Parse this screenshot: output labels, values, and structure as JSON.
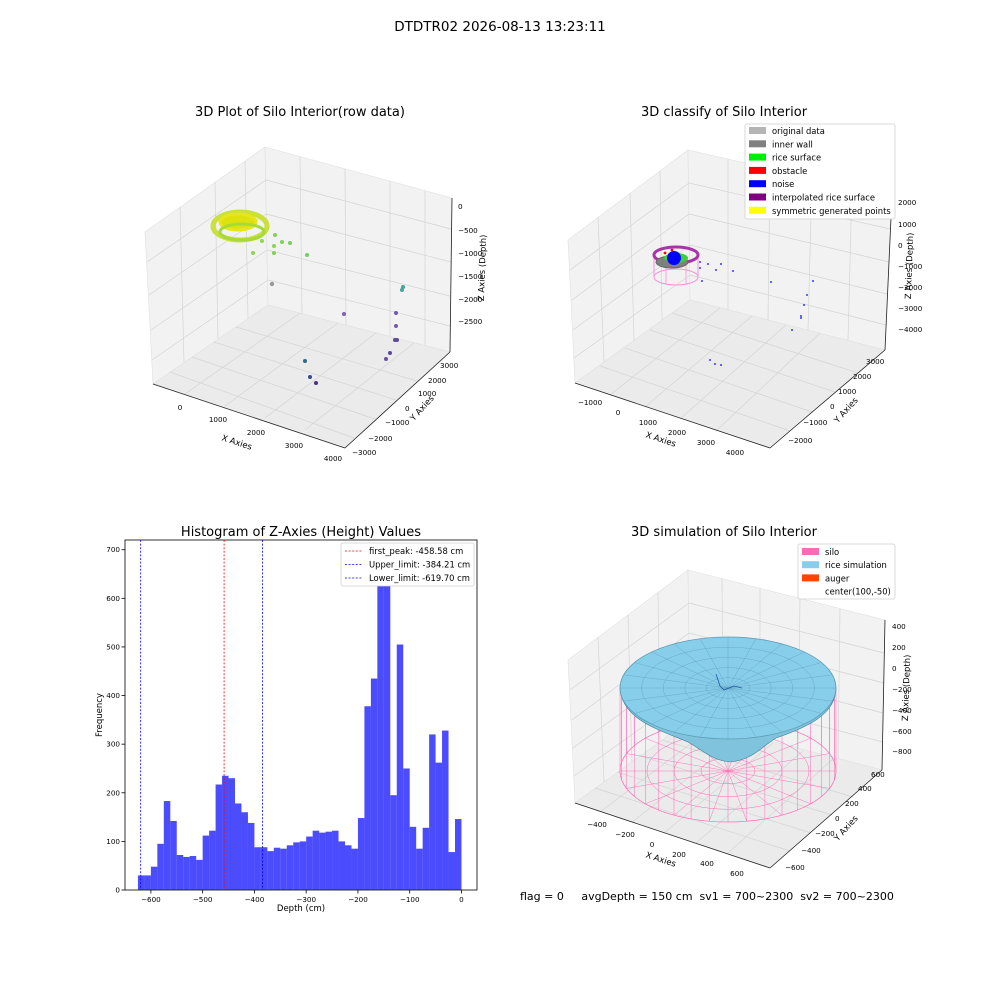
{
  "figure": {
    "suptitle": "DTDTR02 2026-08-13 13:23:11",
    "status_line": "flag = 0     avgDepth = 150 cm  sv1 = 700~2300  sv2 = 700~2300"
  },
  "chart_data": [
    {
      "id": "raw",
      "type": "scatter",
      "title": "3D Plot of Silo Interior(row data)",
      "xlabel": "X Axies",
      "ylabel": "Y Axies",
      "zlabel": "Z Axies (Depth)",
      "x_ticks": [
        "0",
        "1000",
        "2000",
        "3000",
        "4000"
      ],
      "y_ticks": [
        "−3000",
        "−2000",
        "−1000",
        "0",
        "1000",
        "2000",
        "3000"
      ],
      "z_ticks": [
        "0",
        "−500",
        "−1000",
        "−1500",
        "−2000",
        "−2500"
      ],
      "points": [
        {
          "x": 1500,
          "y": -300,
          "z": -2500
        },
        {
          "x": 1550,
          "y": -500,
          "z": -2700
        },
        {
          "x": 3000,
          "y": -200,
          "z": -2400
        },
        {
          "x": 3700,
          "y": 3000,
          "z": -1200
        },
        {
          "x": 2500,
          "y": 800,
          "z": -2200
        },
        {
          "x": 3600,
          "y": 1200,
          "z": -2100
        },
        {
          "x": 3200,
          "y": 1400,
          "z": -2500
        },
        {
          "x": 3300,
          "y": -100,
          "z": -2700
        },
        {
          "x": 600,
          "y": 200,
          "z": -1200
        },
        {
          "x": 800,
          "y": 1000,
          "z": -900
        }
      ]
    },
    {
      "id": "classify",
      "type": "scatter",
      "title": "3D classify of Silo Interior",
      "xlabel": "X Axies",
      "ylabel": "Y Axies",
      "zlabel": "Z Axies (Depth)",
      "x_ticks": [
        "−1000",
        "0",
        "1000",
        "2000",
        "3000",
        "4000"
      ],
      "y_ticks": [
        "−2000",
        "−1000",
        "0",
        "1000",
        "2000",
        "3000"
      ],
      "z_ticks": [
        "2000",
        "1000",
        "0",
        "−1000",
        "−2000",
        "−3000",
        "−4000"
      ],
      "legend": {
        "position": "upper right",
        "entries": [
          {
            "label": "original data",
            "color": "#b5b5b5"
          },
          {
            "label": "inner wall",
            "color": "#808080"
          },
          {
            "label": "rice surface",
            "color": "#00ee00"
          },
          {
            "label": "obstacle",
            "color": "#ff0000"
          },
          {
            "label": "noise",
            "color": "#0000ff"
          },
          {
            "label": "interpolated rice surface",
            "color": "#800080"
          },
          {
            "label": "symmetric generated points",
            "color": "#ffff00"
          }
        ]
      }
    },
    {
      "id": "histogram",
      "type": "bar",
      "title": "Histogram of Z-Axies (Height) Values",
      "xlabel": "Depth (cm)",
      "ylabel": "Frequency",
      "xlim": [
        -650,
        30
      ],
      "ylim": [
        0,
        720
      ],
      "x_ticks": [
        -600,
        -500,
        -400,
        -300,
        -200,
        -100,
        0
      ],
      "y_ticks": [
        0,
        100,
        200,
        300,
        400,
        500,
        600,
        700
      ],
      "bar_color": "#0000ff",
      "bin_edges_start": -625,
      "bin_width": 12.5,
      "values": [
        30,
        30,
        48,
        95,
        183,
        142,
        72,
        68,
        70,
        62,
        112,
        122,
        217,
        235,
        230,
        178,
        160,
        138,
        88,
        88,
        80,
        87,
        85,
        92,
        98,
        100,
        110,
        122,
        118,
        120,
        122,
        100,
        92,
        85,
        148,
        378,
        435,
        628,
        708,
        195,
        505,
        250,
        130,
        85,
        128,
        320,
        262,
        328,
        78,
        146
      ],
      "vlines": [
        {
          "label": "first_peak: -458.58 cm",
          "x": -458.58,
          "color": "#ff0000"
        },
        {
          "label": "Upper_limit: -384.21 cm",
          "x": -384.21,
          "color": "#0000ff"
        },
        {
          "label": "Lower_limit: -619.70 cm",
          "x": -619.7,
          "color": "#0000ff"
        }
      ],
      "legend": {
        "position": "upper right"
      }
    },
    {
      "id": "simulation",
      "type": "surface",
      "title": "3D simulation of Silo Interior",
      "xlabel": "X Axies",
      "ylabel": "Y Axies",
      "zlabel": "Z Axies (Depth)",
      "x_ticks": [
        "−400",
        "−200",
        "0",
        "200",
        "400",
        "600"
      ],
      "y_ticks": [
        "−600",
        "−400",
        "−200",
        "0",
        "200",
        "400",
        "600"
      ],
      "z_ticks": [
        "400",
        "200",
        "0",
        "−200",
        "−400",
        "−600",
        "−800"
      ],
      "legend": {
        "position": "upper right",
        "entries": [
          {
            "label": "silo",
            "color": "#ff69b4"
          },
          {
            "label": "rice simulation",
            "color": "#87ceeb"
          },
          {
            "label": "auger",
            "color": "#ff4500"
          },
          {
            "label": "center(100,-50)",
            "color": ""
          }
        ]
      }
    }
  ]
}
